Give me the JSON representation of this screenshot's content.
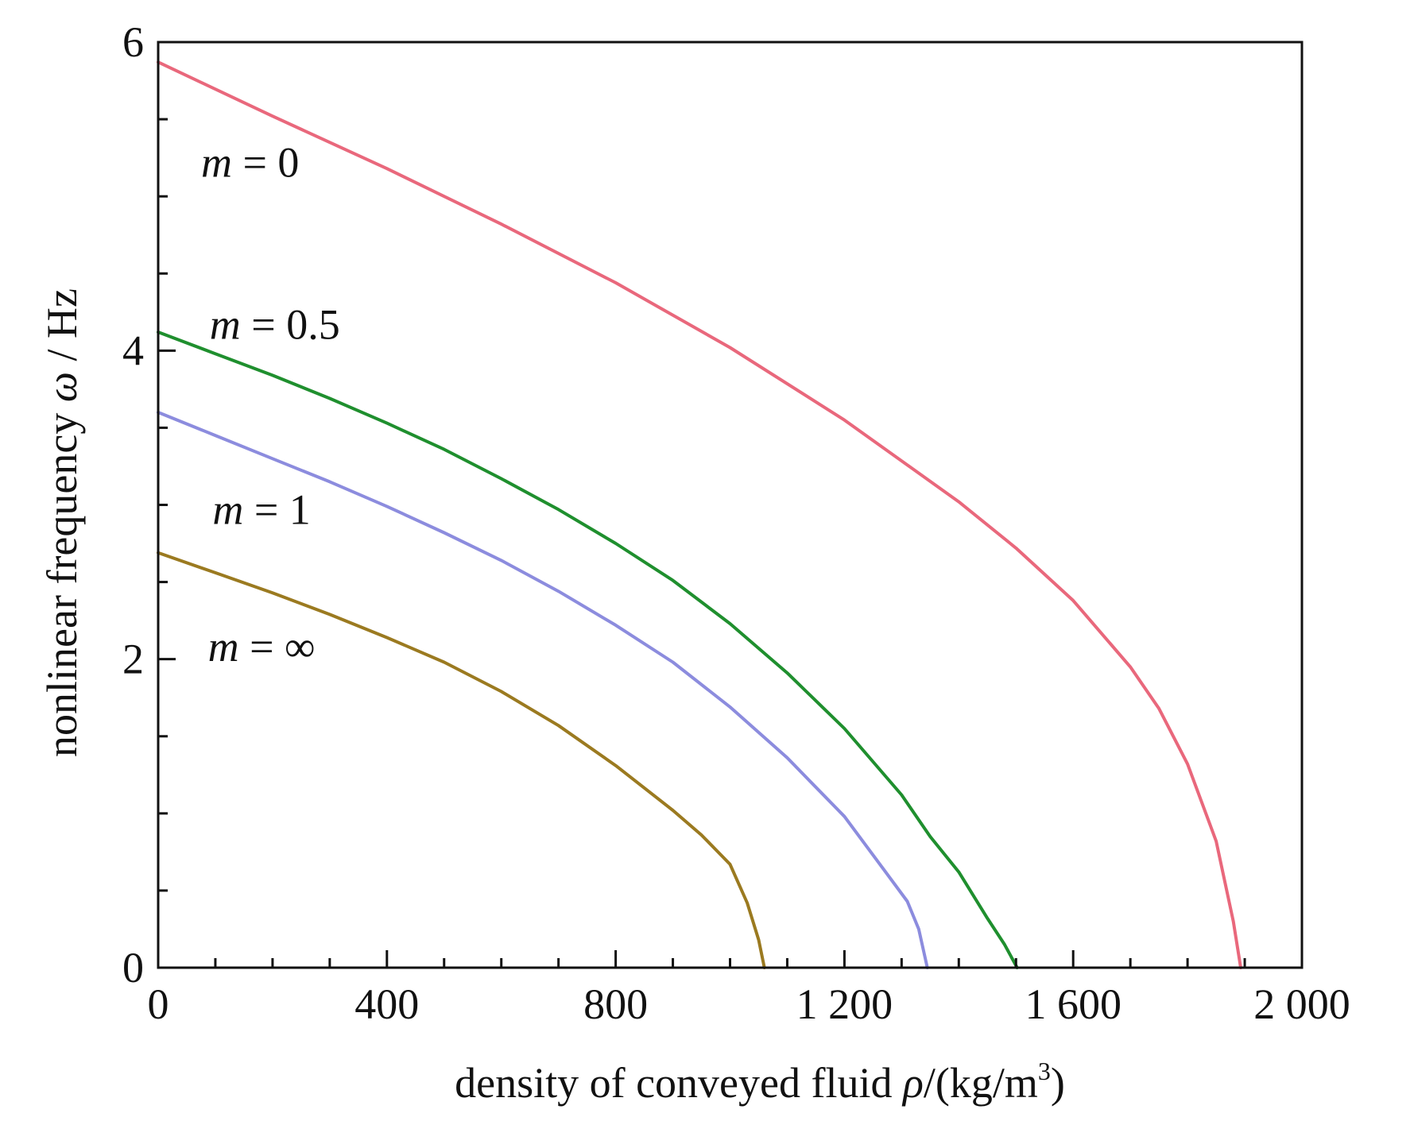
{
  "chart_data": {
    "type": "line",
    "title": "",
    "xlabel_parts": {
      "prefix": "density of conveyed fluid ",
      "symbol": "ρ",
      "unit_open": "/(kg/m",
      "unit_sup": "3",
      "unit_close": ")"
    },
    "ylabel_parts": {
      "prefix": "nonlinear frequency ",
      "symbol": "ω",
      "unit": " / Hz"
    },
    "xlim": [
      0,
      2000
    ],
    "ylim": [
      0,
      6
    ],
    "x_major_ticks": [
      0,
      400,
      800,
      1200,
      1600,
      2000
    ],
    "x_tick_labels": [
      "0",
      "400",
      "800",
      "1 200",
      "1 600",
      "2 000"
    ],
    "x_minor_ticks": [
      100,
      200,
      300,
      500,
      600,
      700,
      900,
      1000,
      1100,
      1300,
      1400,
      1500,
      1700,
      1800,
      1900
    ],
    "y_major_ticks": [
      0,
      2,
      4,
      6
    ],
    "y_tick_labels": [
      "0",
      "2",
      "4",
      "6"
    ],
    "y_minor_ticks": [
      0.5,
      1,
      1.5,
      2.5,
      3,
      3.5,
      4.5,
      5,
      5.5
    ],
    "grid": false,
    "legend": "none",
    "series": [
      {
        "label_var": "m",
        "label_eq": " = 0",
        "label_at": {
          "x": 75,
          "y": 5.22
        },
        "color": "#e9687c",
        "points": [
          [
            0,
            5.87
          ],
          [
            200,
            5.52
          ],
          [
            400,
            5.18
          ],
          [
            600,
            4.82
          ],
          [
            800,
            4.44
          ],
          [
            1000,
            4.02
          ],
          [
            1200,
            3.55
          ],
          [
            1400,
            3.02
          ],
          [
            1500,
            2.72
          ],
          [
            1600,
            2.38
          ],
          [
            1700,
            1.95
          ],
          [
            1750,
            1.68
          ],
          [
            1800,
            1.32
          ],
          [
            1850,
            0.82
          ],
          [
            1880,
            0.3
          ],
          [
            1893,
            0.0
          ]
        ]
      },
      {
        "label_var": "m",
        "label_eq": " = 0.5",
        "label_at": {
          "x": 90,
          "y": 4.17
        },
        "color": "#1f8f2e",
        "points": [
          [
            0,
            4.12
          ],
          [
            100,
            3.98
          ],
          [
            200,
            3.84
          ],
          [
            300,
            3.69
          ],
          [
            400,
            3.53
          ],
          [
            500,
            3.36
          ],
          [
            600,
            3.17
          ],
          [
            700,
            2.97
          ],
          [
            800,
            2.75
          ],
          [
            900,
            2.51
          ],
          [
            1000,
            2.23
          ],
          [
            1100,
            1.91
          ],
          [
            1200,
            1.55
          ],
          [
            1300,
            1.12
          ],
          [
            1350,
            0.85
          ],
          [
            1400,
            0.62
          ],
          [
            1450,
            0.32
          ],
          [
            1480,
            0.15
          ],
          [
            1502,
            0.0
          ]
        ]
      },
      {
        "label_var": "m",
        "label_eq": " = 1",
        "label_at": {
          "x": 95,
          "y": 2.97
        },
        "color": "#8c8cde",
        "points": [
          [
            0,
            3.6
          ],
          [
            100,
            3.45
          ],
          [
            200,
            3.3
          ],
          [
            300,
            3.15
          ],
          [
            400,
            2.99
          ],
          [
            500,
            2.82
          ],
          [
            600,
            2.64
          ],
          [
            700,
            2.44
          ],
          [
            800,
            2.22
          ],
          [
            900,
            1.98
          ],
          [
            1000,
            1.69
          ],
          [
            1100,
            1.36
          ],
          [
            1200,
            0.98
          ],
          [
            1270,
            0.63
          ],
          [
            1310,
            0.43
          ],
          [
            1330,
            0.25
          ],
          [
            1345,
            0.0
          ]
        ]
      },
      {
        "label_var": "m",
        "label_eq": " = ∞",
        "label_at": {
          "x": 87,
          "y": 2.08
        },
        "color": "#9b7a20",
        "points": [
          [
            0,
            2.69
          ],
          [
            100,
            2.56
          ],
          [
            200,
            2.43
          ],
          [
            300,
            2.29
          ],
          [
            400,
            2.14
          ],
          [
            500,
            1.98
          ],
          [
            600,
            1.79
          ],
          [
            700,
            1.57
          ],
          [
            800,
            1.31
          ],
          [
            900,
            1.02
          ],
          [
            950,
            0.86
          ],
          [
            1000,
            0.67
          ],
          [
            1030,
            0.42
          ],
          [
            1050,
            0.18
          ],
          [
            1060,
            0.0
          ]
        ]
      }
    ]
  }
}
